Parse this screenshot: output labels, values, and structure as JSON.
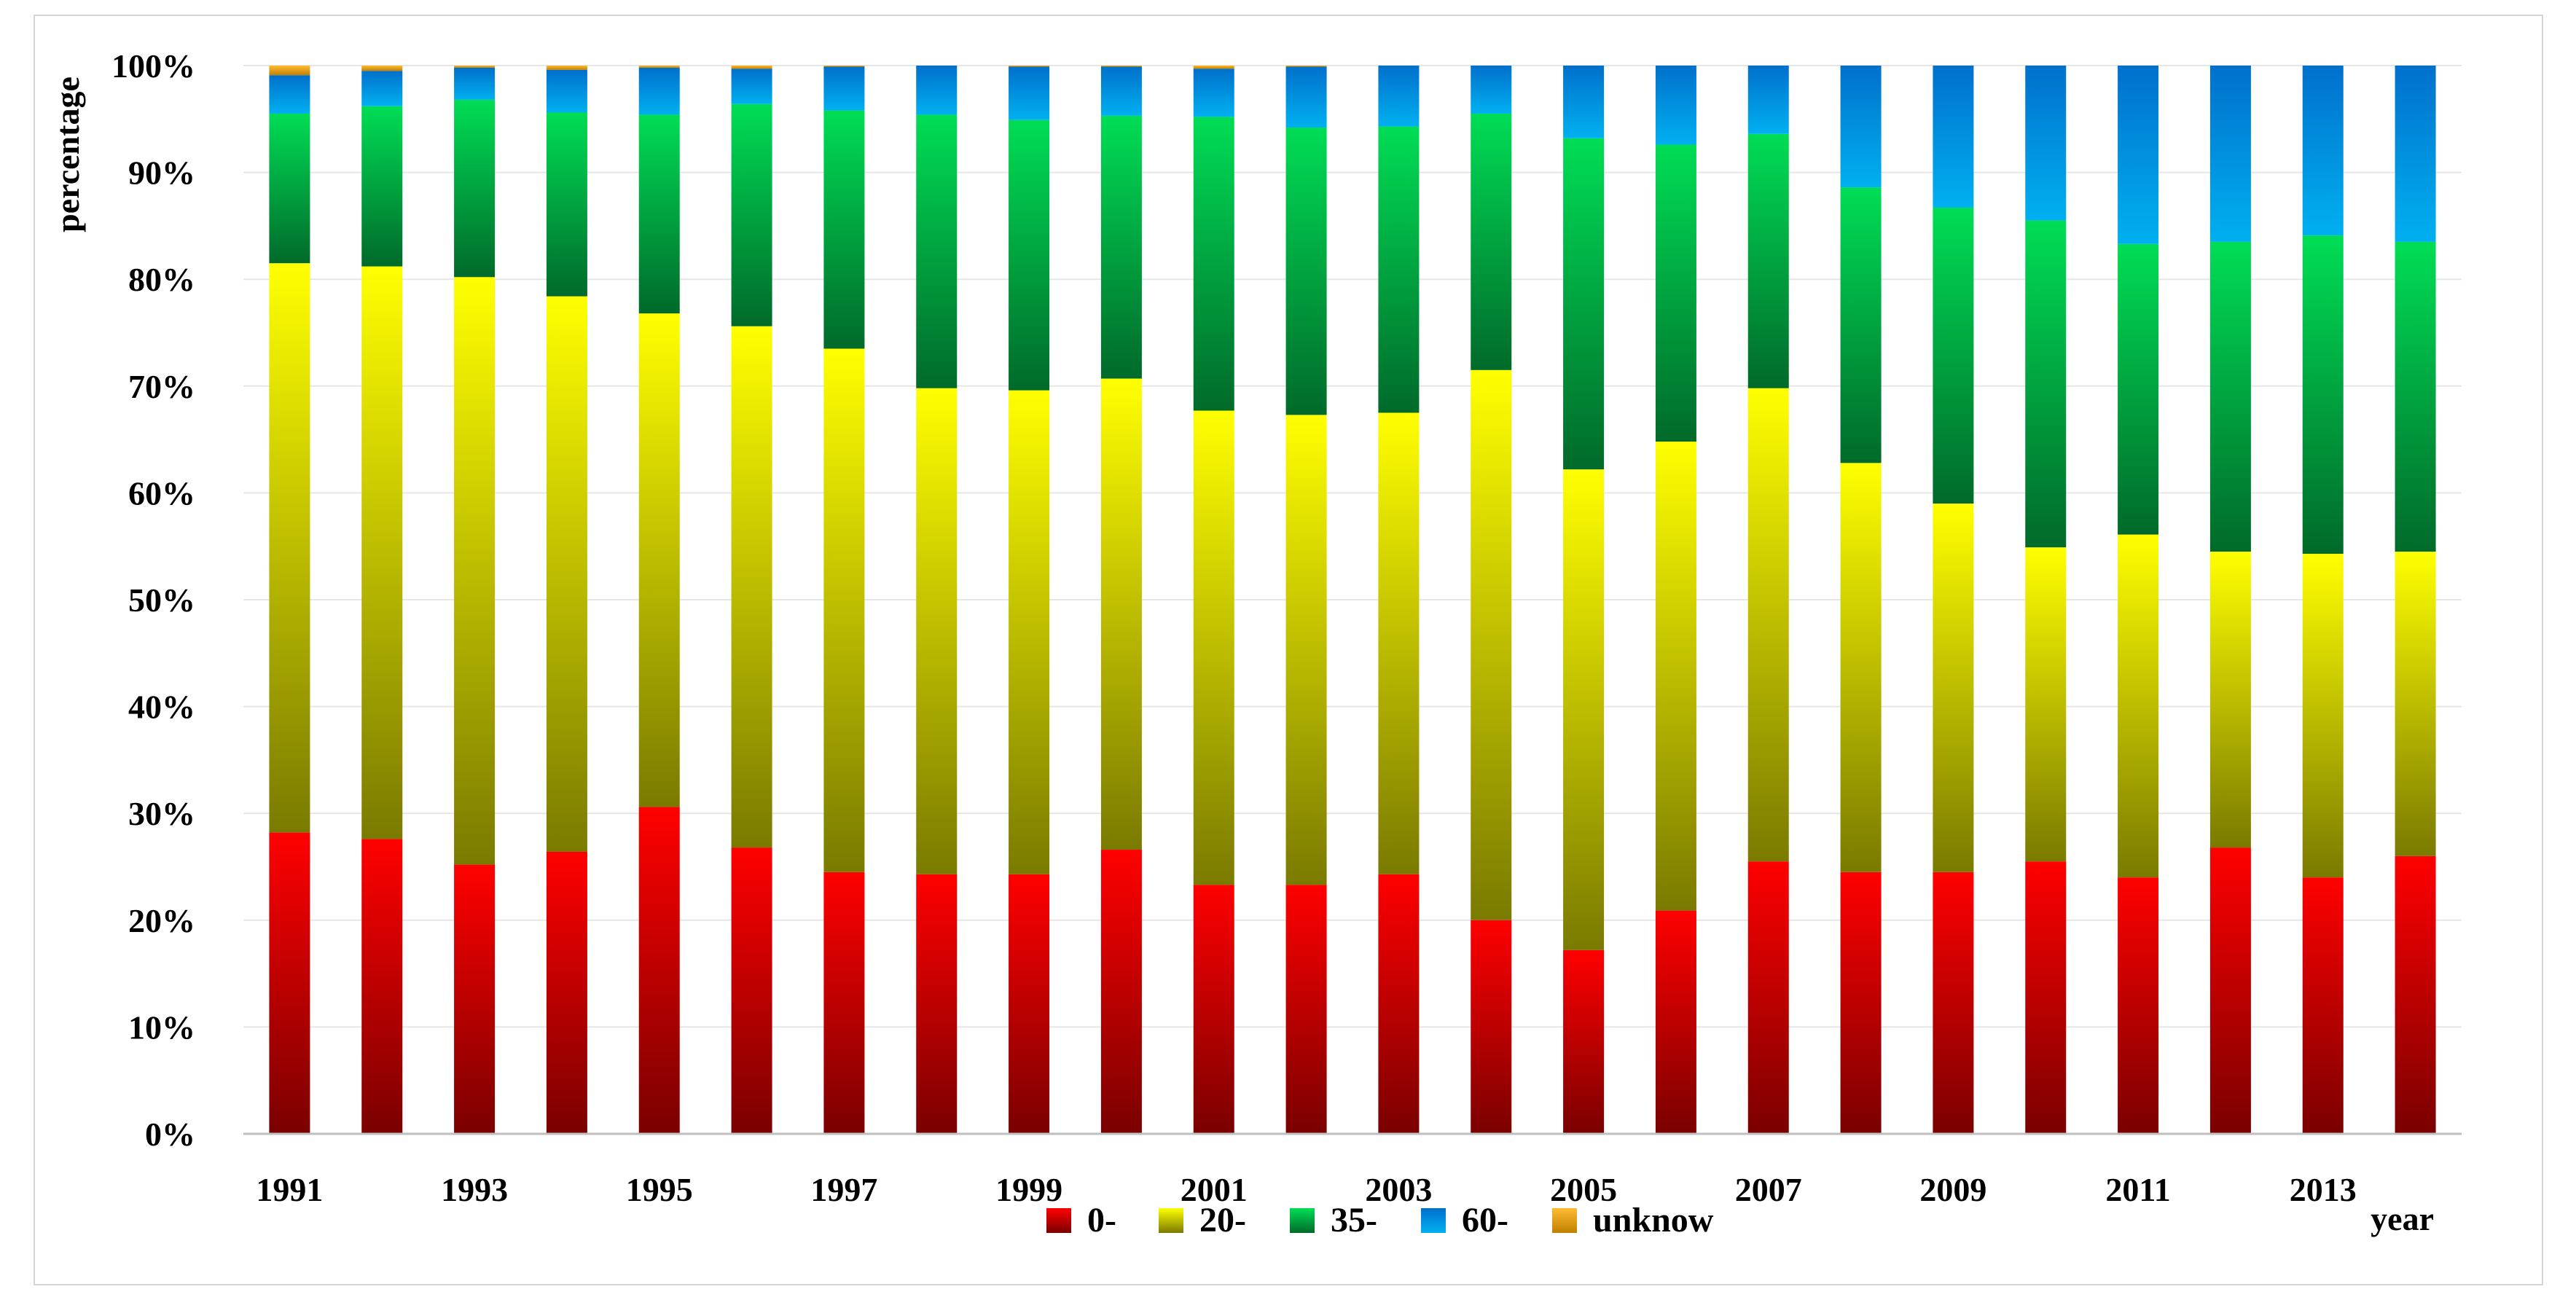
{
  "chart_data": {
    "type": "bar",
    "stacked": true,
    "normalized": true,
    "title": "",
    "xlabel": "year",
    "ylabel": "percentage",
    "ylim": [
      0,
      100
    ],
    "y_ticks": [
      "0%",
      "10%",
      "20%",
      "30%",
      "40%",
      "50%",
      "60%",
      "70%",
      "80%",
      "90%",
      "100%"
    ],
    "categories": [
      "1991",
      "1992",
      "1993",
      "1994",
      "1995",
      "1996",
      "1997",
      "1998",
      "1999",
      "2000",
      "2001",
      "2002",
      "2003",
      "2004",
      "2005",
      "2006",
      "2007",
      "2008",
      "2009",
      "2010",
      "2011",
      "2012",
      "2013",
      "2014"
    ],
    "x_tick_labels": [
      "1991",
      "",
      "1993",
      "",
      "1995",
      "",
      "1997",
      "",
      "1999",
      "",
      "2001",
      "",
      "2003",
      "",
      "2005",
      "",
      "2007",
      "",
      "2009",
      "",
      "2011",
      "",
      "2013",
      ""
    ],
    "series": [
      {
        "name": "0-",
        "color_top": "#ff0000",
        "color_bottom": "#7a0000",
        "values": [
          28.2,
          27.6,
          25.2,
          26.4,
          30.6,
          26.8,
          24.5,
          24.3,
          24.3,
          26.6,
          23.3,
          23.3,
          24.3,
          20.0,
          17.2,
          20.9,
          25.5,
          24.5,
          24.5,
          25.5,
          24.0,
          26.8,
          24.0,
          26.0
        ]
      },
      {
        "name": "20-",
        "color_top": "#ffff00",
        "color_bottom": "#7a7a00",
        "values": [
          53.3,
          53.6,
          55.0,
          52.0,
          46.2,
          48.8,
          49.0,
          45.5,
          45.3,
          44.1,
          44.4,
          44.0,
          43.2,
          51.5,
          45.0,
          43.9,
          44.3,
          38.3,
          34.5,
          29.4,
          32.1,
          27.7,
          30.3,
          28.5
        ]
      },
      {
        "name": "35-",
        "color_top": "#00dd55",
        "color_bottom": "#006a2a",
        "values": [
          14.0,
          15.0,
          16.6,
          17.2,
          18.6,
          20.8,
          22.3,
          25.6,
          25.3,
          24.6,
          27.5,
          26.9,
          26.8,
          24.0,
          31.0,
          27.8,
          23.8,
          25.8,
          27.7,
          30.6,
          27.2,
          29.0,
          29.8,
          29.0
        ]
      },
      {
        "name": "60-",
        "color_top": "#0070cc",
        "color_bottom": "#00b0f0",
        "values": [
          3.6,
          3.3,
          3.0,
          4.0,
          4.4,
          3.3,
          4.1,
          4.6,
          5.0,
          4.6,
          4.5,
          5.7,
          5.7,
          4.5,
          6.8,
          7.4,
          6.4,
          11.4,
          13.3,
          14.5,
          16.7,
          16.5,
          15.9,
          16.5
        ]
      },
      {
        "name": "unknow",
        "color_top": "#ffbb33",
        "color_bottom": "#c08000",
        "values": [
          0.9,
          0.5,
          0.2,
          0.4,
          0.2,
          0.3,
          0.1,
          0.0,
          0.4,
          0.1,
          0.3,
          0.1,
          0.0,
          0.0,
          0.0,
          0.0,
          0.0,
          0.0,
          0.0,
          0.0,
          0.0,
          0.0,
          0.0,
          0.0
        ]
      }
    ],
    "legend_position": "bottom-center"
  }
}
